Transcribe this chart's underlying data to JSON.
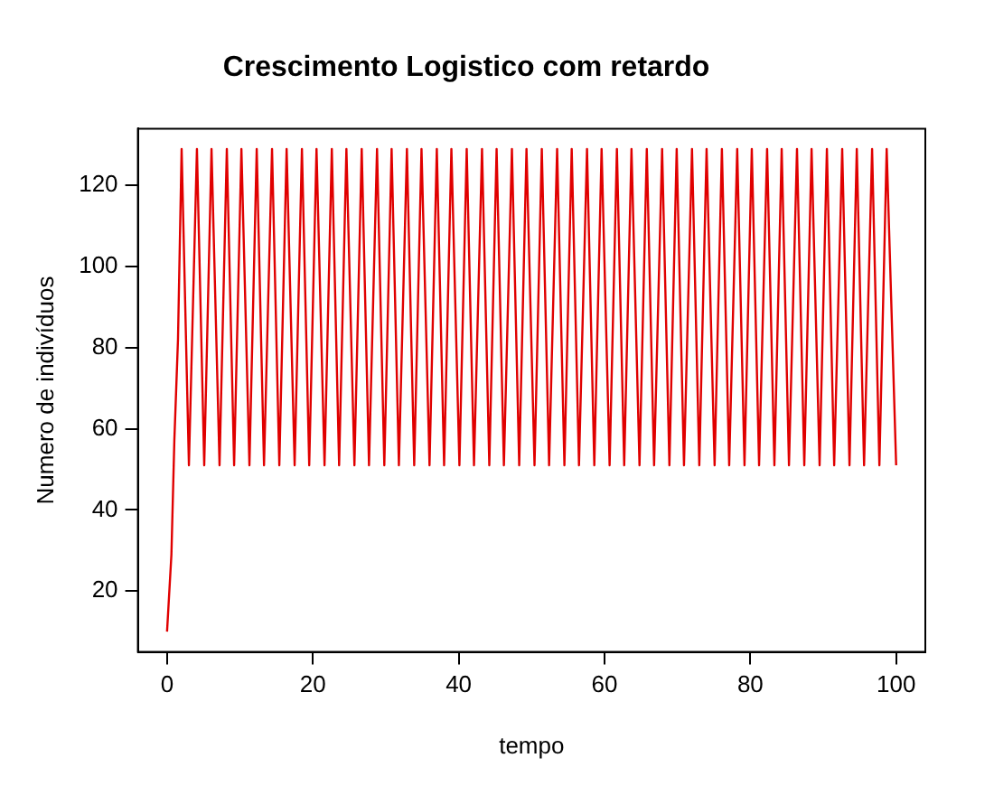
{
  "chart_data": {
    "type": "line",
    "title": "Crescimento Logistico com retardo",
    "xlabel": "tempo",
    "ylabel": "Numero de indivíduos",
    "xlim": [
      -4,
      104
    ],
    "xticks": [
      0,
      20,
      40,
      60,
      80,
      100
    ],
    "ylim": [
      5,
      134
    ],
    "yticks": [
      20,
      40,
      60,
      80,
      100,
      120
    ],
    "marker": "none",
    "line_style": "solid",
    "legend": false,
    "series": [
      {
        "color": "#e00000",
        "x": [
          0,
          0.6,
          1.0,
          1.5,
          2.0,
          3.0,
          4.1,
          5.1,
          6.1,
          7.2,
          8.2,
          9.2,
          10.2,
          11.3,
          12.3,
          13.3,
          14.4,
          15.4,
          16.4,
          17.5,
          18.5,
          19.5,
          20.5,
          21.6,
          22.6,
          23.6,
          24.6,
          25.7,
          26.7,
          27.7,
          28.8,
          29.8,
          30.8,
          31.8,
          32.9,
          33.9,
          34.9,
          36.0,
          37.0,
          38.0,
          39.0,
          40.1,
          41.1,
          42.1,
          43.2,
          44.2,
          45.2,
          46.2,
          47.3,
          48.3,
          49.3,
          50.4,
          51.4,
          52.4,
          53.5,
          54.5,
          55.5,
          56.5,
          57.6,
          58.6,
          59.6,
          60.7,
          61.7,
          62.7,
          63.7,
          64.8,
          65.8,
          66.8,
          67.9,
          68.9,
          69.9,
          70.9,
          72.0,
          73.0,
          74.0,
          75.1,
          76.1,
          77.1,
          78.2,
          79.2,
          80.2,
          81.2,
          82.3,
          83.3,
          84.3,
          85.3,
          86.4,
          87.4,
          88.4,
          89.5,
          90.5,
          91.5,
          92.6,
          93.6,
          94.6,
          95.6,
          96.7,
          97.7,
          98.7,
          100
        ],
        "values": [
          10,
          29,
          57,
          82,
          129,
          51,
          129,
          51,
          129,
          51,
          129,
          51,
          129,
          51,
          129,
          51,
          129,
          51,
          129,
          51,
          129,
          51,
          129,
          51,
          129,
          51,
          129,
          51,
          129,
          51,
          129,
          51,
          129,
          51,
          129,
          51,
          129,
          51,
          129,
          51,
          129,
          51,
          129,
          51,
          129,
          51,
          129,
          51,
          129,
          51,
          129,
          51,
          129,
          51,
          129,
          51,
          129,
          51,
          129,
          51,
          129,
          51,
          129,
          51,
          129,
          51,
          129,
          51,
          129,
          51,
          129,
          51,
          129,
          51,
          129,
          51,
          129,
          51,
          129,
          51,
          129,
          51,
          129,
          51,
          129,
          51,
          129,
          51,
          129,
          51,
          129,
          51,
          129,
          51,
          129,
          51,
          129,
          51,
          129,
          51
        ]
      }
    ]
  }
}
